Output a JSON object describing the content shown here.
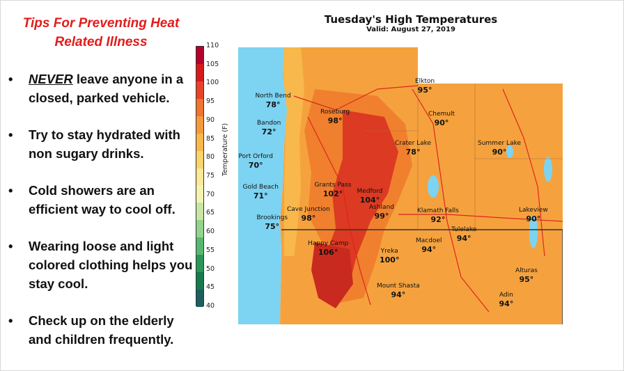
{
  "sidebar": {
    "title_line1": "Tips For Preventing Heat",
    "title_line2": "Related Illness",
    "bullet": "•",
    "tips": [
      {
        "lead": "NEVER",
        "text": " leave anyone in a closed, parked vehicle."
      },
      {
        "lead": "",
        "text": "Try to stay hydrated with non sugary drinks."
      },
      {
        "lead": "",
        "text": "Cold showers are an efficient way to cool off."
      },
      {
        "lead": "",
        "text": "Wearing loose and light colored clothing helps you stay cool."
      },
      {
        "lead": "",
        "text": "Check up on the elderly and children frequently."
      }
    ]
  },
  "map": {
    "title": "Tuesday's High Temperatures",
    "valid": "Valid: August 27, 2019",
    "colorbar": {
      "label": "Temperature (F)",
      "ticks": [
        "110",
        "105",
        "100",
        "95",
        "90",
        "85",
        "80",
        "75",
        "70",
        "65",
        "60",
        "55",
        "50",
        "45",
        "40"
      ],
      "colors": [
        "#b3002d",
        "#d7191c",
        "#e8432a",
        "#f0732f",
        "#f59a3c",
        "#f8b84c",
        "#fad36a",
        "#fce898",
        "#f5f3b0",
        "#c9e6a5",
        "#93d38c",
        "#56b870",
        "#2a9657",
        "#177a4c",
        "#1d5e5e"
      ]
    },
    "colors": {
      "ocean": "#7dd3f2",
      "land_hot": "#f0802e",
      "land_very_hot": "#dc3a22",
      "land_warm": "#f5a23e",
      "outside": "#ffffff",
      "roads": "#e0241e",
      "borders": "#b06a3a",
      "lakes": "#7dd3f2"
    },
    "cities": [
      {
        "name": "Elkton",
        "temp": "95°"
      },
      {
        "name": "North Bend",
        "temp": "78°"
      },
      {
        "name": "Bandon",
        "temp": "72°"
      },
      {
        "name": "Roseburg",
        "temp": "98°"
      },
      {
        "name": "Chemult",
        "temp": "90°"
      },
      {
        "name": "Port Orford",
        "temp": "70°"
      },
      {
        "name": "Crater Lake",
        "temp": "78°"
      },
      {
        "name": "Summer Lake",
        "temp": "90°"
      },
      {
        "name": "Gold Beach",
        "temp": "71°"
      },
      {
        "name": "Grants Pass",
        "temp": "102°"
      },
      {
        "name": "Medford",
        "temp": "104°"
      },
      {
        "name": "Cave Junction",
        "temp": "98°"
      },
      {
        "name": "Ashland",
        "temp": "99°"
      },
      {
        "name": "Klamath Falls",
        "temp": "92°"
      },
      {
        "name": "Lakeview",
        "temp": "90°"
      },
      {
        "name": "Brookings",
        "temp": "75°"
      },
      {
        "name": "Tulelake",
        "temp": "94°"
      },
      {
        "name": "Happy Camp",
        "temp": "106°"
      },
      {
        "name": "Macdoel",
        "temp": "94°"
      },
      {
        "name": "Yreka",
        "temp": "100°"
      },
      {
        "name": "Alturas",
        "temp": "95°"
      },
      {
        "name": "Mount Shasta",
        "temp": "94°"
      },
      {
        "name": "Adin",
        "temp": "94°"
      }
    ]
  }
}
